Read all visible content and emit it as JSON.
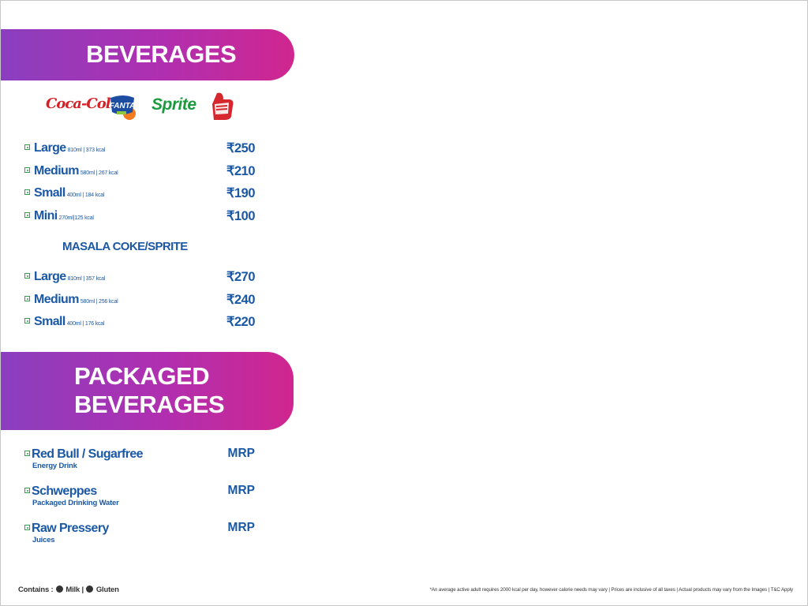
{
  "sections": {
    "beverages_title": "BEVERAGES",
    "packaged_title_line1": "PACKAGED",
    "packaged_title_line2": "BEVERAGES"
  },
  "brands": {
    "coca_cola": "Coca-Cola",
    "fanta": "FANTA",
    "sprite": "Sprite",
    "thums_up": "Thums Up"
  },
  "beverages": [
    {
      "name": "Large",
      "meta": "810ml | 373 kcal",
      "price": "₹250"
    },
    {
      "name": "Medium",
      "meta": "580ml | 267 kcal",
      "price": "₹210"
    },
    {
      "name": "Small",
      "meta": "400ml | 184 kcal",
      "price": "₹190"
    },
    {
      "name": "Mini",
      "meta": "270ml|125 kcal",
      "price": "₹100"
    }
  ],
  "masala": {
    "heading": "MASALA COKE/SPRITE",
    "items": [
      {
        "name": "Large",
        "meta": "810ml | 357 kcal",
        "price": "₹270"
      },
      {
        "name": "Medium",
        "meta": "580ml | 256 kcal",
        "price": "₹240"
      },
      {
        "name": "Small",
        "meta": "400ml | 176 kcal",
        "price": "₹220"
      }
    ]
  },
  "packaged": [
    {
      "name": "Red Bull / Sugarfree",
      "sub": "Energy Drink",
      "price": "MRP"
    },
    {
      "name": "Schweppes",
      "sub": "Packaged Drinking Water",
      "price": "MRP"
    },
    {
      "name": "Raw Pressery",
      "sub": "Juices",
      "price": "MRP"
    }
  ],
  "footer": {
    "contains_label": "Contains :",
    "milk": "Milk |",
    "gluten": "Gluten",
    "disclaimer": "*An average active adult requires 2000 kcal per day, however calorie needs may vary | Prices are inclusive of all taxes | Actual products may vary from the Images | T&C Apply"
  },
  "colors": {
    "banner_start": "#8a3fbf",
    "banner_end": "#d0268f",
    "text_blue": "#1a58a6",
    "veg_green": "#2e9e4f"
  }
}
